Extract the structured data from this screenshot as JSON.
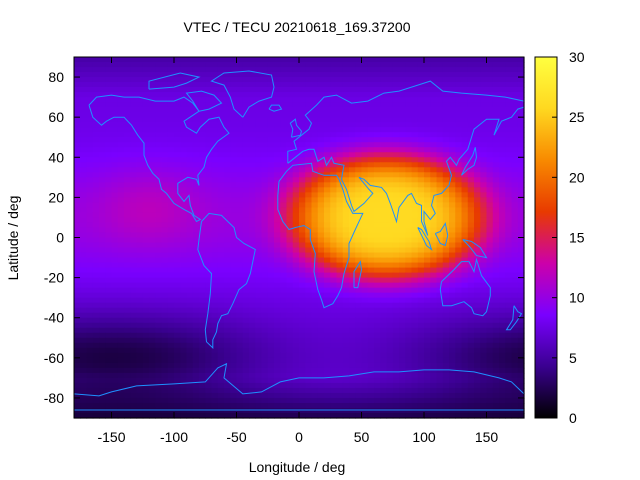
{
  "chart_data": {
    "type": "heatmap",
    "title": "VTEC / TECU 20210618_169.37200",
    "xlabel": "Longitude / deg",
    "ylabel": "Latitude / deg",
    "xlim": [
      -180,
      180
    ],
    "ylim": [
      -90,
      90
    ],
    "xticks": [
      -150,
      -100,
      -50,
      0,
      50,
      100,
      150
    ],
    "yticks": [
      -80,
      -60,
      -40,
      -20,
      0,
      20,
      40,
      60,
      80
    ],
    "colorbar": {
      "range": [
        0,
        30
      ],
      "ticks": [
        0,
        5,
        10,
        15,
        20,
        25,
        30
      ],
      "stops": [
        "#000000",
        "#3a0090",
        "#7a00ff",
        "#cc00aa",
        "#e83a00",
        "#f88a00",
        "#ffd820",
        "#ffff40"
      ]
    },
    "grid": {
      "lon_step": 5,
      "lat_step": 2.5,
      "field_model": {
        "base_vtec": 7.5,
        "anomaly_peak_vtec": 26,
        "anomaly_center_lon": 70,
        "anomaly_center_lat": 10,
        "anomaly_lon_halfwidth": 75,
        "anomaly_lat_halfwidth": 30,
        "southern_minimum_vtec": 1.5,
        "southern_minimum_lat": -60,
        "southern_minimum_lon": -150
      }
    },
    "overlay": "coastlines",
    "coastline_color": "#1e90ff"
  }
}
